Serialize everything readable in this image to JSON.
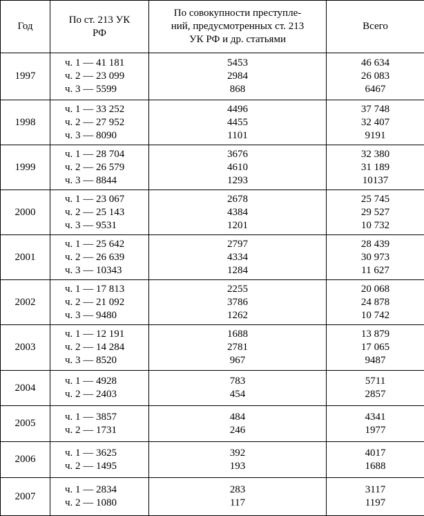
{
  "table": {
    "header": {
      "year": "Год",
      "art213": [
        "По ст. 213 УК",
        "РФ"
      ],
      "combined": [
        "По совокупности преступле-",
        "ний, предусмотренных ст. 213",
        "УК РФ и др. статьями"
      ],
      "total": "Всего"
    },
    "rows": [
      {
        "year": "1997",
        "parts": [
          "ч. 1 — 41 181",
          "ч. 2 — 23 099",
          "ч. 3 — 5599"
        ],
        "combined": [
          "5453",
          "2984",
          "868"
        ],
        "total": [
          "46 634",
          "26 083",
          "6467"
        ]
      },
      {
        "year": "1998",
        "parts": [
          "ч. 1 — 33 252",
          "ч. 2 — 27 952",
          "ч. 3 — 8090"
        ],
        "combined": [
          "4496",
          "4455",
          "1101"
        ],
        "total": [
          "37 748",
          "32 407",
          "9191"
        ]
      },
      {
        "year": "1999",
        "parts": [
          "ч. 1 — 28 704",
          "ч. 2 — 26 579",
          "ч. 3 — 8844"
        ],
        "combined": [
          "3676",
          "4610",
          "1293"
        ],
        "total": [
          "32 380",
          "31 189",
          "10137"
        ]
      },
      {
        "year": "2000",
        "parts": [
          "ч. 1 — 23 067",
          "ч. 2 — 25 143",
          "ч. 3 — 9531"
        ],
        "combined": [
          "2678",
          "4384",
          "1201"
        ],
        "total": [
          "25 745",
          "29 527",
          "10 732"
        ]
      },
      {
        "year": "2001",
        "parts": [
          "ч. 1 — 25 642",
          "ч. 2 — 26 639",
          "ч. 3 — 10343"
        ],
        "combined": [
          "2797",
          "4334",
          "1284"
        ],
        "total": [
          "28 439",
          "30 973",
          "11 627"
        ]
      },
      {
        "year": "2002",
        "parts": [
          "ч. 1 — 17 813",
          "ч. 2 — 21 092",
          "ч. 3 — 9480"
        ],
        "combined": [
          "2255",
          "3786",
          "1262"
        ],
        "total": [
          "20 068",
          "24 878",
          "10 742"
        ]
      },
      {
        "year": "2003",
        "parts": [
          "ч. 1 — 12 191",
          "ч. 2 — 14 284",
          "ч. 3 — 8520"
        ],
        "combined": [
          "1688",
          "2781",
          "967"
        ],
        "total": [
          "13 879",
          "17 065",
          "9487"
        ]
      },
      {
        "year": "2004",
        "parts": [
          "ч. 1 — 4928",
          "ч. 2 — 2403"
        ],
        "combined": [
          "783",
          "454"
        ],
        "total": [
          "5711",
          "2857"
        ]
      },
      {
        "year": "2005",
        "parts": [
          "ч. 1 — 3857",
          "ч. 2 — 1731"
        ],
        "combined": [
          "484",
          "246"
        ],
        "total": [
          "4341",
          "1977"
        ]
      },
      {
        "year": "2006",
        "parts": [
          "ч. 1 — 3625",
          "ч. 2 — 1495"
        ],
        "combined": [
          "392",
          "193"
        ],
        "total": [
          "4017",
          "1688"
        ]
      },
      {
        "year": "2007",
        "parts": [
          "ч. 1 — 2834",
          "ч. 2 — 1080"
        ],
        "combined": [
          "283",
          "117"
        ],
        "total": [
          "3117",
          "1197"
        ]
      }
    ]
  }
}
